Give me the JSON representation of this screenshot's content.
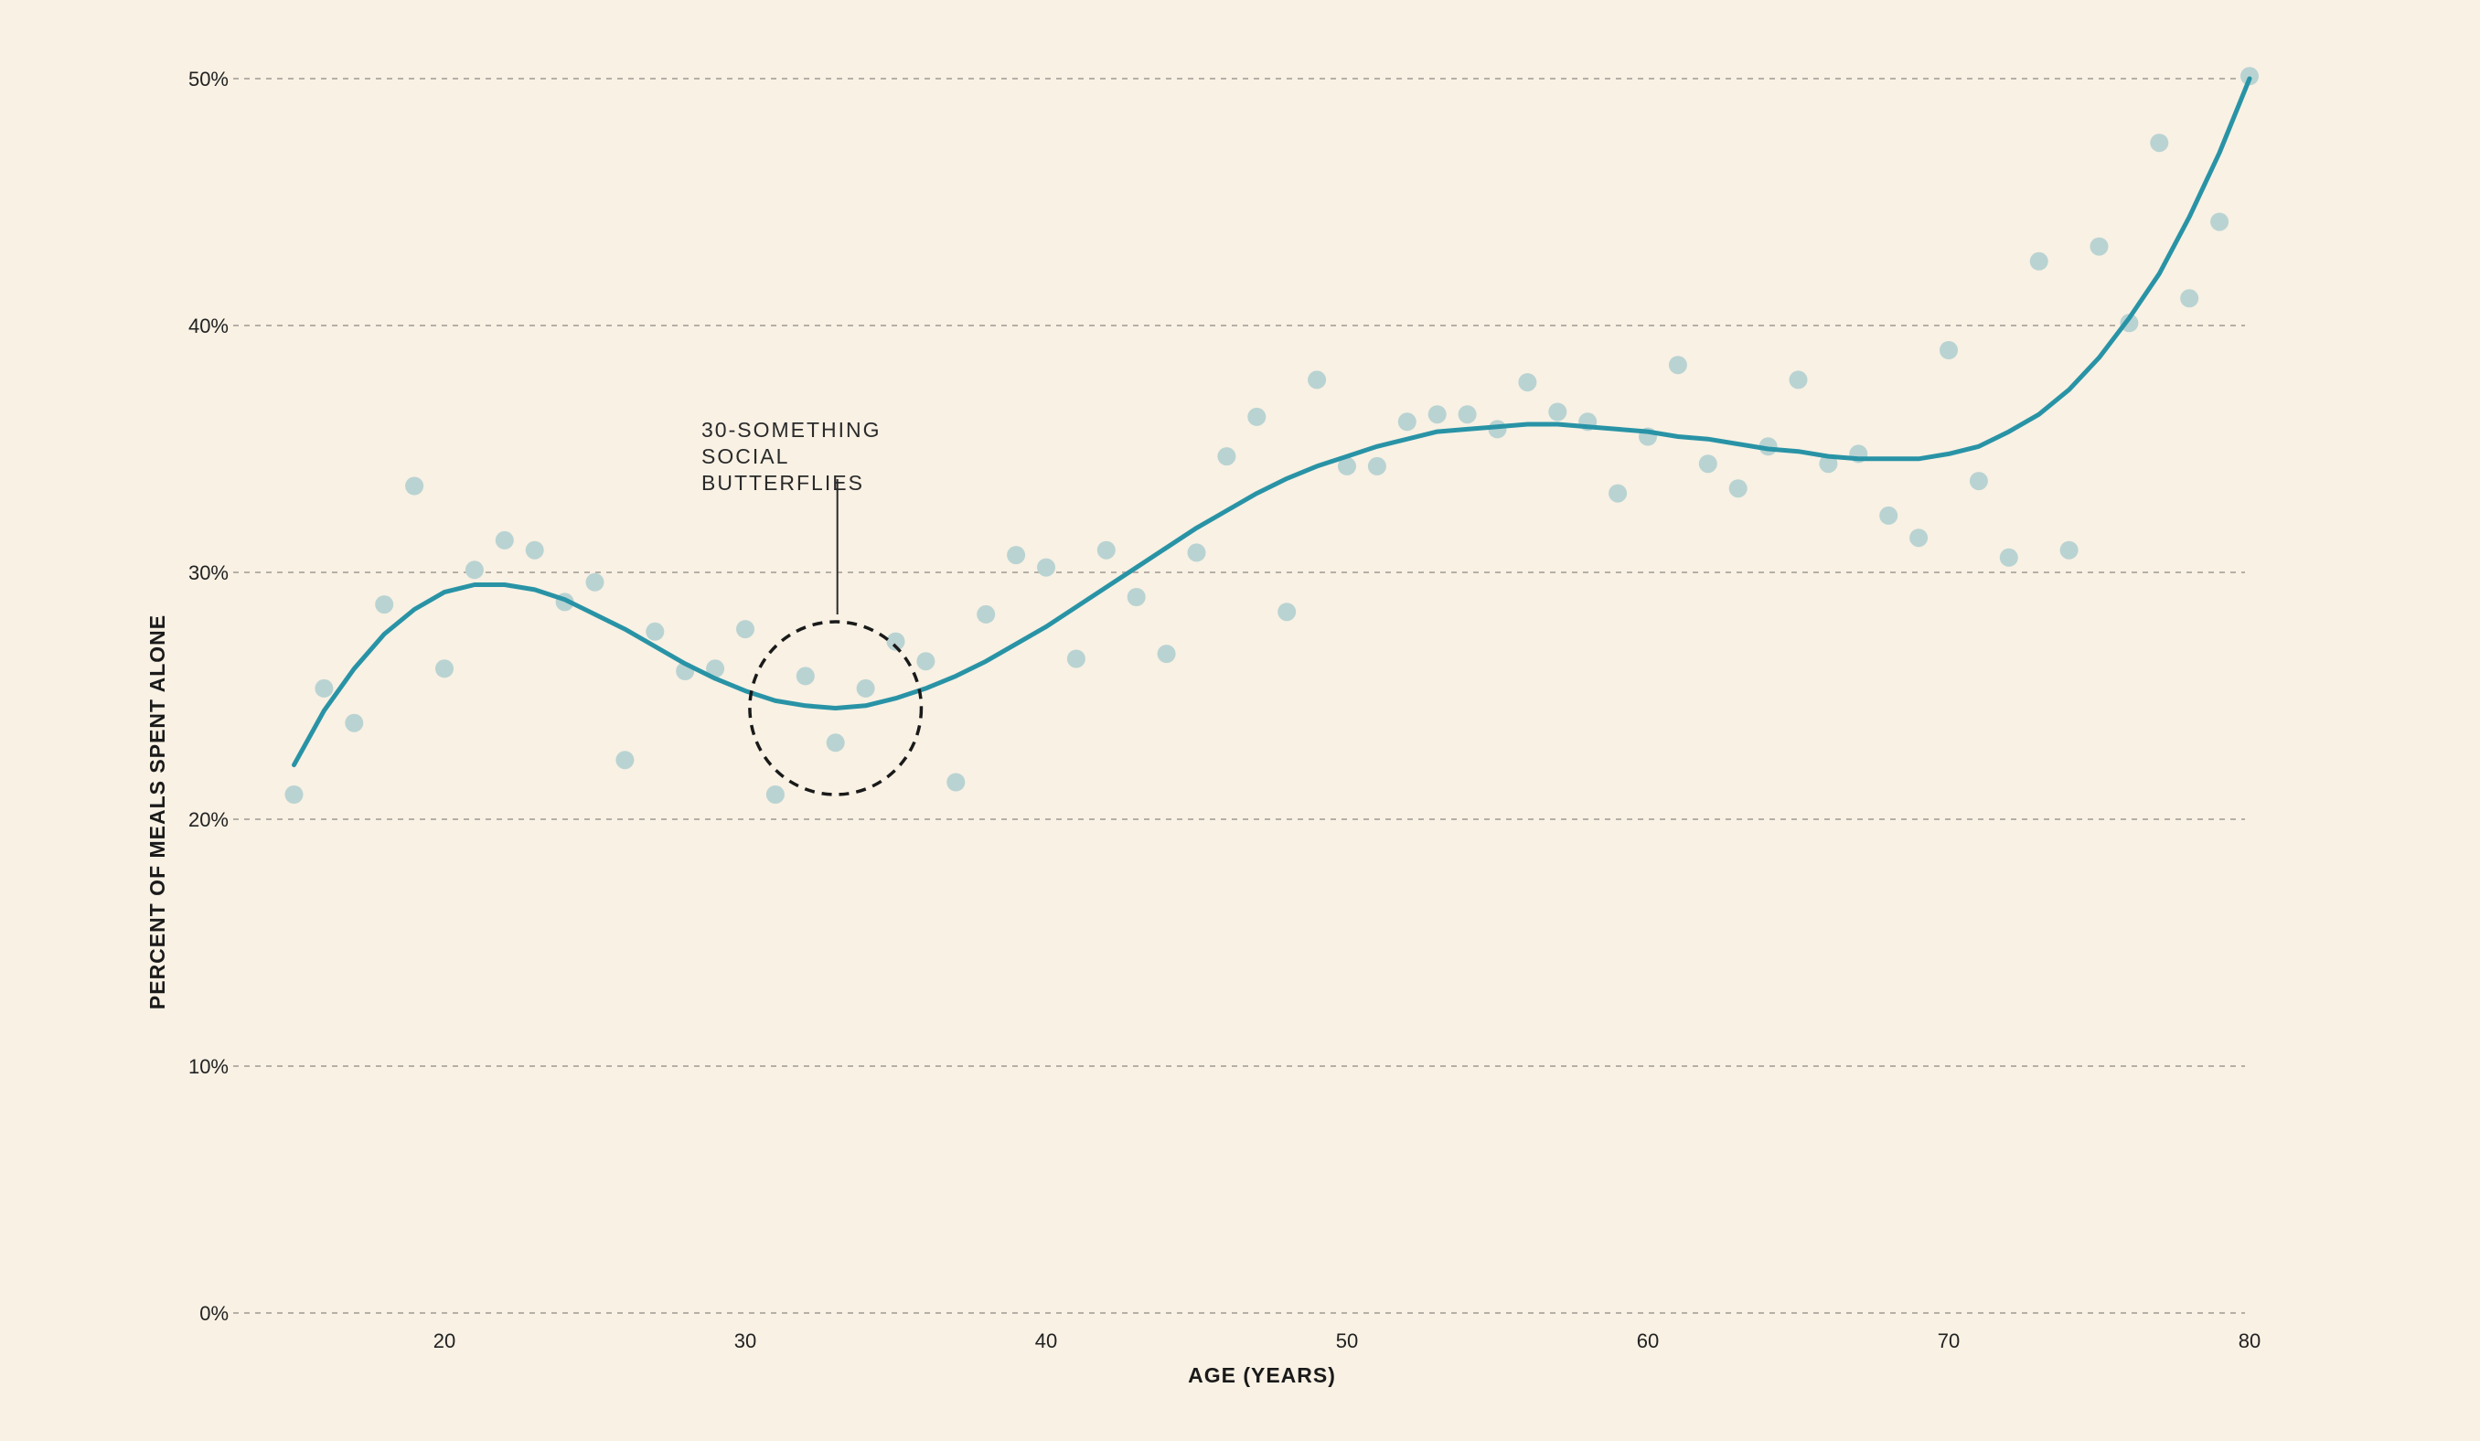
{
  "chart_data": {
    "type": "scatter",
    "xlabel": "AGE (YEARS)",
    "ylabel": "PERCENT OF MEALS SPENT ALONE",
    "xlim": [
      12.5,
      80
    ],
    "ylim": [
      0,
      50
    ],
    "xticks": [
      {
        "value": 20,
        "label": "20"
      },
      {
        "value": 30,
        "label": "30"
      },
      {
        "value": 40,
        "label": "40"
      },
      {
        "value": 50,
        "label": "50"
      },
      {
        "value": 60,
        "label": "60"
      },
      {
        "value": 70,
        "label": "70"
      },
      {
        "value": 80,
        "label": "80"
      }
    ],
    "yticks": [
      {
        "value": 0,
        "label": "0%"
      },
      {
        "value": 10,
        "label": "10%"
      },
      {
        "value": 20,
        "label": "20%"
      },
      {
        "value": 30,
        "label": "30%"
      },
      {
        "value": 40,
        "label": "40%"
      },
      {
        "value": 50,
        "label": "50%"
      }
    ],
    "grid": "horizontal dashed",
    "colors": {
      "background": "#f8f1e4",
      "points": "#b9d3d2",
      "trend": "#2993a6",
      "annotation": "#1a1a1a"
    },
    "points": [
      {
        "x": 15,
        "y": 21.0
      },
      {
        "x": 16,
        "y": 25.3
      },
      {
        "x": 17,
        "y": 23.9
      },
      {
        "x": 18,
        "y": 28.7
      },
      {
        "x": 19,
        "y": 33.5
      },
      {
        "x": 20,
        "y": 26.1
      },
      {
        "x": 21,
        "y": 30.1
      },
      {
        "x": 22,
        "y": 31.3
      },
      {
        "x": 23,
        "y": 30.9
      },
      {
        "x": 24,
        "y": 28.8
      },
      {
        "x": 25,
        "y": 29.6
      },
      {
        "x": 26,
        "y": 22.4
      },
      {
        "x": 27,
        "y": 27.6
      },
      {
        "x": 28,
        "y": 26.0
      },
      {
        "x": 29,
        "y": 26.1
      },
      {
        "x": 30,
        "y": 27.7
      },
      {
        "x": 31,
        "y": 21.0
      },
      {
        "x": 32,
        "y": 25.8
      },
      {
        "x": 33,
        "y": 23.1
      },
      {
        "x": 34,
        "y": 25.3
      },
      {
        "x": 35,
        "y": 27.2
      },
      {
        "x": 36,
        "y": 26.4
      },
      {
        "x": 37,
        "y": 21.5
      },
      {
        "x": 38,
        "y": 28.3
      },
      {
        "x": 39,
        "y": 30.7
      },
      {
        "x": 40,
        "y": 30.2
      },
      {
        "x": 41,
        "y": 26.5
      },
      {
        "x": 42,
        "y": 30.9
      },
      {
        "x": 43,
        "y": 29.0
      },
      {
        "x": 44,
        "y": 26.7
      },
      {
        "x": 45,
        "y": 30.8
      },
      {
        "x": 46,
        "y": 34.7
      },
      {
        "x": 47,
        "y": 36.3
      },
      {
        "x": 48,
        "y": 28.4
      },
      {
        "x": 49,
        "y": 37.8
      },
      {
        "x": 50,
        "y": 34.3
      },
      {
        "x": 51,
        "y": 34.3
      },
      {
        "x": 52,
        "y": 36.1
      },
      {
        "x": 53,
        "y": 36.4
      },
      {
        "x": 54,
        "y": 36.4
      },
      {
        "x": 55,
        "y": 35.8
      },
      {
        "x": 56,
        "y": 37.7
      },
      {
        "x": 57,
        "y": 36.5
      },
      {
        "x": 58,
        "y": 36.1
      },
      {
        "x": 59,
        "y": 33.2
      },
      {
        "x": 60,
        "y": 35.5
      },
      {
        "x": 61,
        "y": 38.4
      },
      {
        "x": 62,
        "y": 34.4
      },
      {
        "x": 63,
        "y": 33.4
      },
      {
        "x": 64,
        "y": 35.1
      },
      {
        "x": 65,
        "y": 37.8
      },
      {
        "x": 66,
        "y": 34.4
      },
      {
        "x": 67,
        "y": 34.8
      },
      {
        "x": 68,
        "y": 32.3
      },
      {
        "x": 69,
        "y": 31.4
      },
      {
        "x": 70,
        "y": 39.0
      },
      {
        "x": 71,
        "y": 33.7
      },
      {
        "x": 72,
        "y": 30.6
      },
      {
        "x": 73,
        "y": 42.6
      },
      {
        "x": 74,
        "y": 30.9
      },
      {
        "x": 75,
        "y": 43.2
      },
      {
        "x": 76,
        "y": 40.1
      },
      {
        "x": 77,
        "y": 47.4
      },
      {
        "x": 78,
        "y": 41.1
      },
      {
        "x": 79,
        "y": 44.2
      },
      {
        "x": 80,
        "y": 50.1
      }
    ],
    "trend_line": [
      {
        "x": 15,
        "y": 22.2
      },
      {
        "x": 16,
        "y": 24.4
      },
      {
        "x": 17,
        "y": 26.1
      },
      {
        "x": 18,
        "y": 27.5
      },
      {
        "x": 19,
        "y": 28.5
      },
      {
        "x": 20,
        "y": 29.2
      },
      {
        "x": 21,
        "y": 29.5
      },
      {
        "x": 22,
        "y": 29.5
      },
      {
        "x": 23,
        "y": 29.3
      },
      {
        "x": 24,
        "y": 28.9
      },
      {
        "x": 25,
        "y": 28.3
      },
      {
        "x": 26,
        "y": 27.7
      },
      {
        "x": 27,
        "y": 27.0
      },
      {
        "x": 28,
        "y": 26.3
      },
      {
        "x": 29,
        "y": 25.7
      },
      {
        "x": 30,
        "y": 25.2
      },
      {
        "x": 31,
        "y": 24.8
      },
      {
        "x": 32,
        "y": 24.6
      },
      {
        "x": 33,
        "y": 24.5
      },
      {
        "x": 34,
        "y": 24.6
      },
      {
        "x": 35,
        "y": 24.9
      },
      {
        "x": 36,
        "y": 25.3
      },
      {
        "x": 37,
        "y": 25.8
      },
      {
        "x": 38,
        "y": 26.4
      },
      {
        "x": 39,
        "y": 27.1
      },
      {
        "x": 40,
        "y": 27.8
      },
      {
        "x": 41,
        "y": 28.6
      },
      {
        "x": 42,
        "y": 29.4
      },
      {
        "x": 43,
        "y": 30.2
      },
      {
        "x": 44,
        "y": 31.0
      },
      {
        "x": 45,
        "y": 31.8
      },
      {
        "x": 46,
        "y": 32.5
      },
      {
        "x": 47,
        "y": 33.2
      },
      {
        "x": 48,
        "y": 33.8
      },
      {
        "x": 49,
        "y": 34.3
      },
      {
        "x": 50,
        "y": 34.7
      },
      {
        "x": 51,
        "y": 35.1
      },
      {
        "x": 52,
        "y": 35.4
      },
      {
        "x": 53,
        "y": 35.7
      },
      {
        "x": 54,
        "y": 35.8
      },
      {
        "x": 55,
        "y": 35.9
      },
      {
        "x": 56,
        "y": 36.0
      },
      {
        "x": 57,
        "y": 36.0
      },
      {
        "x": 58,
        "y": 35.9
      },
      {
        "x": 59,
        "y": 35.8
      },
      {
        "x": 60,
        "y": 35.7
      },
      {
        "x": 61,
        "y": 35.5
      },
      {
        "x": 62,
        "y": 35.4
      },
      {
        "x": 63,
        "y": 35.2
      },
      {
        "x": 64,
        "y": 35.0
      },
      {
        "x": 65,
        "y": 34.9
      },
      {
        "x": 66,
        "y": 34.7
      },
      {
        "x": 67,
        "y": 34.6
      },
      {
        "x": 68,
        "y": 34.6
      },
      {
        "x": 69,
        "y": 34.6
      },
      {
        "x": 70,
        "y": 34.8
      },
      {
        "x": 71,
        "y": 35.1
      },
      {
        "x": 72,
        "y": 35.7
      },
      {
        "x": 73,
        "y": 36.4
      },
      {
        "x": 74,
        "y": 37.4
      },
      {
        "x": 75,
        "y": 38.7
      },
      {
        "x": 76,
        "y": 40.3
      },
      {
        "x": 77,
        "y": 42.1
      },
      {
        "x": 78,
        "y": 44.4
      },
      {
        "x": 79,
        "y": 47.0
      },
      {
        "x": 80,
        "y": 50.0
      }
    ],
    "annotation": {
      "lines": [
        "30-SOMETHING",
        "SOCIAL",
        "BUTTERFLIES"
      ],
      "center": {
        "x": 33,
        "y": 24.5
      },
      "radius_x": 2.85,
      "radius_y": 3.5
    }
  }
}
